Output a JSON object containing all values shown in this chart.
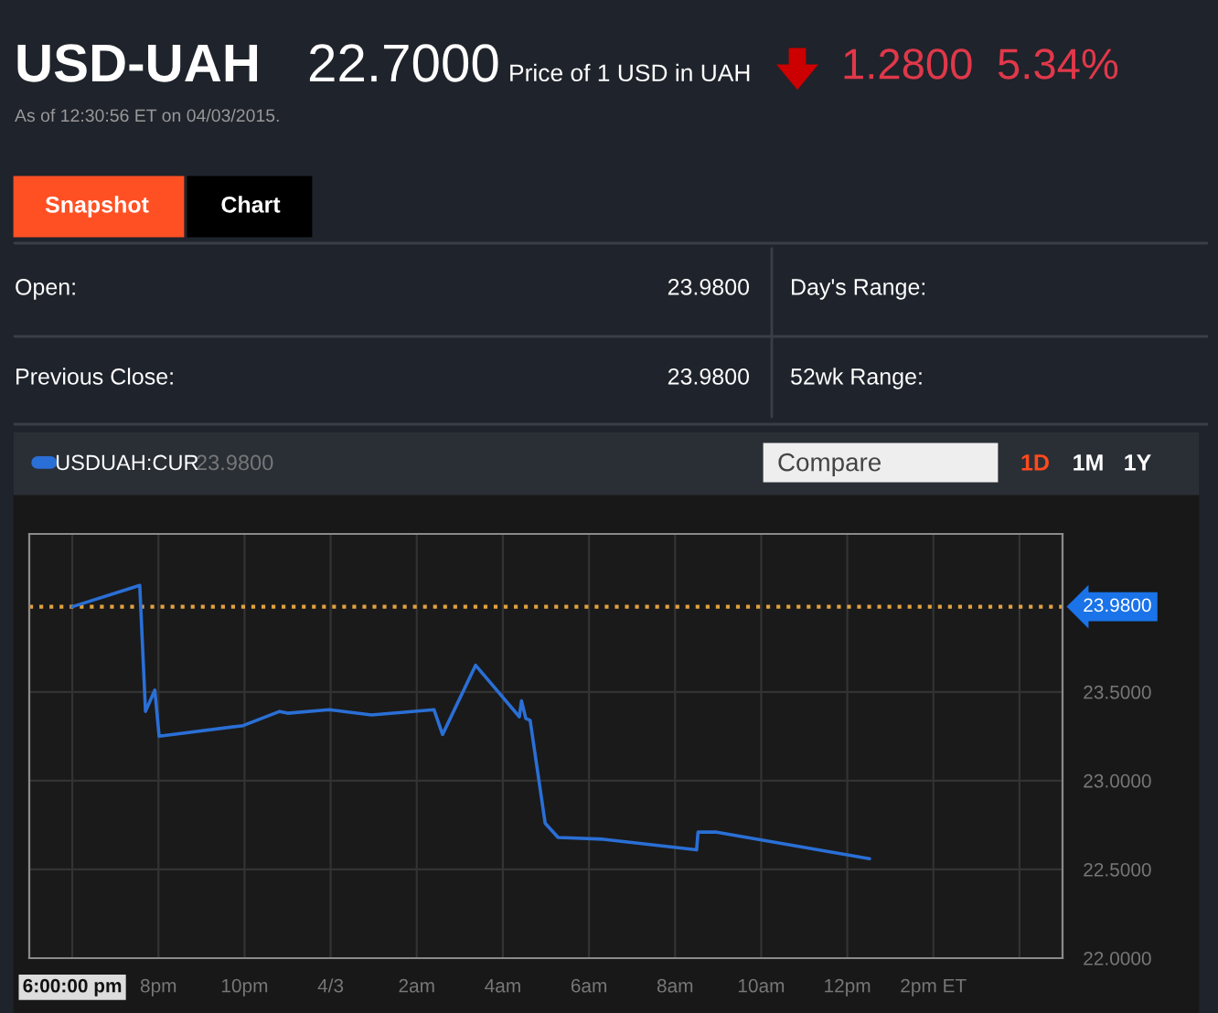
{
  "chart_data": {
    "type": "line",
    "title": "USD-UAH",
    "annotations": [
      "22.7000",
      "Price of 1 USD in UAH",
      "1.2800",
      "5.34%",
      "As of 12:30:56 ET on 04/03/2015.",
      "Snapshot",
      "Chart",
      "Open:",
      "23.9800",
      "Day's Range:",
      "Previous Close:",
      "23.9800",
      "52wk Range:",
      "23.9800",
      "Compare",
      "1D",
      "1M",
      "1Y"
    ],
    "series": [
      {
        "name": "USDUAH:CUR",
        "color": "#2a6fd6",
        "x": [
          "2015-04-02T18:00",
          "2015-04-02T19:34",
          "2015-04-02T19:42",
          "2015-04-02T19:55",
          "2015-04-02T20:01",
          "2015-04-02T21:58",
          "2015-04-02T22:49",
          "2015-04-02T23:00",
          "2015-04-02T23:58",
          "2015-04-03T00:57",
          "2015-04-03T02:24",
          "2015-04-03T02:36",
          "2015-04-03T03:22",
          "2015-04-03T04:23",
          "2015-04-03T04:26",
          "2015-04-03T04:32",
          "2015-04-03T04:38",
          "2015-04-03T04:59",
          "2015-04-03T05:17",
          "2015-04-03T06:20",
          "2015-04-03T08:30",
          "2015-04-03T08:32",
          "2015-04-03T08:58",
          "2015-04-03T12:31"
        ],
        "values": [
          23.98,
          24.1,
          23.39,
          23.51,
          23.25,
          23.31,
          23.39,
          23.38,
          23.4,
          23.37,
          23.4,
          23.26,
          23.65,
          23.36,
          23.45,
          23.35,
          23.34,
          22.76,
          22.68,
          22.67,
          22.61,
          22.71,
          22.71,
          22.56
        ]
      }
    ],
    "xlim": [
      "2015-04-02T17:00",
      "2015-04-03T17:00"
    ],
    "xticks": [
      {
        "value": "2015-04-02T18:00",
        "label": "6:00:00 pm"
      },
      {
        "value": "2015-04-02T20:00",
        "label": "8pm"
      },
      {
        "value": "2015-04-02T22:00",
        "label": "10pm"
      },
      {
        "value": "2015-04-03T00:00",
        "label": "4/3"
      },
      {
        "value": "2015-04-03T02:00",
        "label": "2am"
      },
      {
        "value": "2015-04-03T04:00",
        "label": "4am"
      },
      {
        "value": "2015-04-03T06:00",
        "label": "6am"
      },
      {
        "value": "2015-04-03T08:00",
        "label": "8am"
      },
      {
        "value": "2015-04-03T10:00",
        "label": "10am"
      },
      {
        "value": "2015-04-03T12:00",
        "label": "12pm"
      },
      {
        "value": "2015-04-03T14:00",
        "label": "2pm ET"
      },
      {
        "value": "2015-04-03T16:00",
        "label": null
      }
    ],
    "ylim": [
      22,
      24.39
    ],
    "yticks": [
      {
        "value": 22,
        "label": "22.0000"
      },
      {
        "value": 22.5,
        "label": "22.5000"
      },
      {
        "value": 23,
        "label": "23.0000"
      },
      {
        "value": 23.5,
        "label": "23.5000"
      }
    ],
    "ref_lines": [
      {
        "axis": "y",
        "value": 23.98,
        "label": "23.9800",
        "color": "#e0a040",
        "line_style": "dotted"
      }
    ],
    "grid": true,
    "legend": "top left",
    "line_style": "solid",
    "marker": "none"
  }
}
